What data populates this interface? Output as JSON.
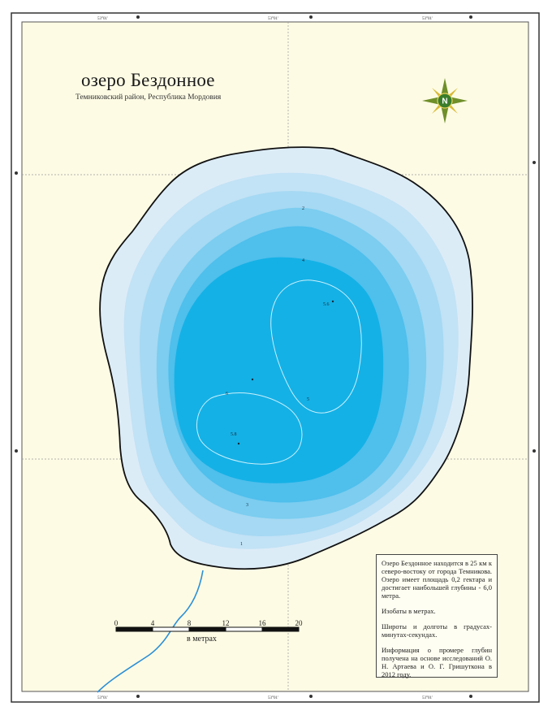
{
  "map": {
    "title": "озеро Бездонное",
    "subtitle": "Темниковский район, Республика Мордовия",
    "colors": {
      "land": "#fdfbe4",
      "depth_0": "#dcecf7",
      "depth_1": "#c2e2f5",
      "depth_2": "#a6d9f3",
      "depth_3": "#7ccdf0",
      "depth_4": "#4fbfec",
      "depth_5": "#14b1e6",
      "shoreline": "#111111",
      "river": "#2c8fd6"
    },
    "depth_labels": [
      "1",
      "2",
      "3",
      "4",
      "5",
      "6",
      "5.6",
      "5.8"
    ],
    "compass": {
      "label": "N",
      "icon": "compass-rose-icon"
    },
    "scale_bar": {
      "ticks": [
        "0",
        "4",
        "8",
        "12",
        "16",
        "20"
      ],
      "unit": "в метрах"
    },
    "info": {
      "paragraph_1": "Озеро Бездонное находится в 25 км к северо-востоку от города Темникова. Озеро имеет площадь 0,2 гектара и достигает наибольшей глубины - 6,0 метра.",
      "paragraph_2": "Изобаты в метрах.",
      "paragraph_3": "Широты и долготы в градусах-минутах-секундах.",
      "paragraph_4": "Информация о промере глубин получена на основе исследований О. Н. Артаева и О. Г. Гришутконa в 2012 году."
    }
  }
}
